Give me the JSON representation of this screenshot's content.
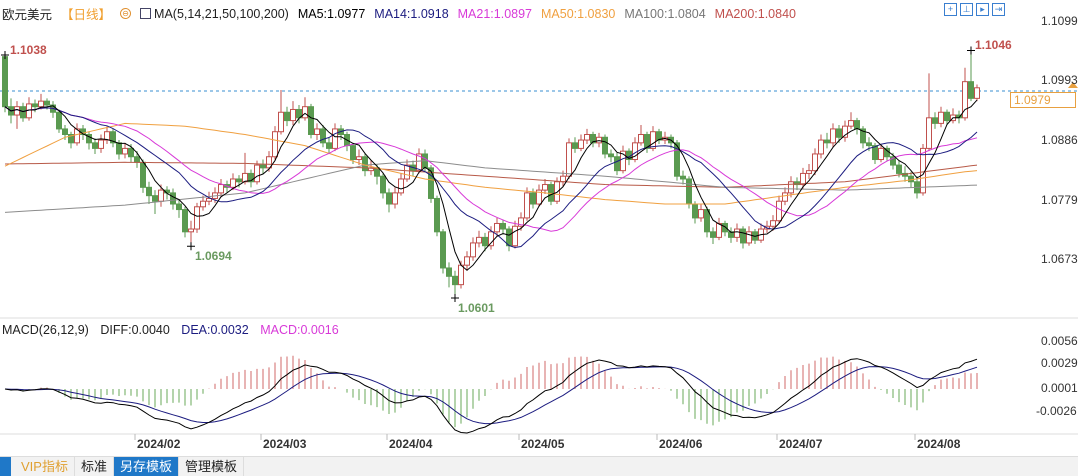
{
  "header": {
    "symbol": "欧元美元",
    "period": "【日线】",
    "indicator": "MA(5,14,21,50,100,200)",
    "ma5": "MA5:1.0977",
    "ma14": "MA14:1.0918",
    "ma21": "MA21:1.0897",
    "ma50": "MA50:1.0830",
    "ma100": "MA100:1.0804",
    "ma200": "MA200:1.0840",
    "tools": [
      "crosshair-icon",
      "range-icon",
      "step-icon",
      "end-icon"
    ]
  },
  "macd_legend": {
    "name": "MACD(26,12,9)",
    "diff": "DIFF:0.0040",
    "dea": "DEA:0.0032",
    "macd": "MACD:0.0016"
  },
  "tabs": [
    {
      "label": "VIP指标"
    },
    {
      "label": "标准"
    },
    {
      "label": "另存模板",
      "selected": true
    },
    {
      "label": "管理模板"
    }
  ],
  "colors": {
    "up": "#c0504d",
    "down": "#5a9a50",
    "ma5": "#000000",
    "ma14": "#1c1c80",
    "ma21": "#d83ad8",
    "ma50": "#f0a040",
    "ma100": "#8c8c8c",
    "ma200": "#b85a48",
    "last_price": "#e8a040",
    "dashed": "#3a8fd0"
  },
  "chart_data": [
    {
      "type": "candlestick",
      "title": "欧元美元 日线",
      "y_axis_ticks": [
        "1.1099",
        "1.0993",
        "1.0886",
        "1.0779",
        "1.0673"
      ],
      "last_price": "1.0979",
      "annotations": [
        {
          "text": "1.1038",
          "kind": "high",
          "index": 0,
          "value": 1.1038
        },
        {
          "text": "1.0694",
          "kind": "low",
          "index": 31,
          "value": 1.0694
        },
        {
          "text": "1.0601",
          "kind": "low",
          "index": 75,
          "value": 1.0601
        },
        {
          "text": "1.1046",
          "kind": "high",
          "index": 161,
          "value": 1.1046
        }
      ],
      "x_ticks": [
        {
          "label": "2024/02",
          "index": 22
        },
        {
          "label": "2024/03",
          "index": 43
        },
        {
          "label": "2024/04",
          "index": 64
        },
        {
          "label": "2024/05",
          "index": 86
        },
        {
          "label": "2024/06",
          "index": 109
        },
        {
          "label": "2024/07",
          "index": 129
        },
        {
          "label": "2024/08",
          "index": 152
        }
      ],
      "first_open": 1.1035,
      "close": [
        1.0945,
        1.093,
        1.0945,
        1.0925,
        1.095,
        1.0945,
        1.0955,
        1.0948,
        1.0935,
        1.0905,
        1.0895,
        1.088,
        1.0905,
        1.0895,
        1.088,
        1.087,
        1.0885,
        1.09,
        1.088,
        1.086,
        1.087,
        1.0855,
        1.0845,
        1.08,
        1.0785,
        1.0775,
        1.0795,
        1.079,
        1.077,
        1.076,
        1.072,
        1.0725,
        1.0765,
        1.0775,
        1.078,
        1.079,
        1.0805,
        1.08,
        1.0815,
        1.081,
        1.0825,
        1.081,
        1.084,
        1.0835,
        1.0855,
        1.09,
        1.0935,
        1.092,
        1.094,
        1.0925,
        1.0945,
        1.0895,
        1.0905,
        1.088,
        1.087,
        1.0905,
        1.0895,
        1.0875,
        1.085,
        1.0855,
        1.083,
        1.0835,
        1.082,
        1.079,
        1.077,
        1.079,
        1.0815,
        1.084,
        1.083,
        1.086,
        1.0835,
        1.078,
        1.072,
        1.0655,
        1.064,
        1.0625,
        1.066,
        1.0675,
        1.07,
        1.071,
        1.0695,
        1.072,
        1.0735,
        1.0725,
        1.0695,
        1.073,
        1.0745,
        1.079,
        1.077,
        1.0795,
        1.0805,
        1.0775,
        1.081,
        1.082,
        1.088,
        1.087,
        1.0885,
        1.0895,
        1.088,
        1.089,
        1.086,
        1.0855,
        1.083,
        1.0865,
        1.085,
        1.088,
        1.0895,
        1.087,
        1.09,
        1.0885,
        1.089,
        1.088,
        1.082,
        1.0815,
        1.077,
        1.0745,
        1.076,
        1.072,
        1.071,
        1.0735,
        1.072,
        1.071,
        1.0725,
        1.07,
        1.072,
        1.0705,
        1.0725,
        1.073,
        1.074,
        1.0775,
        1.079,
        1.081,
        1.0805,
        1.0825,
        1.083,
        1.086,
        1.0885,
        1.088,
        1.0905,
        1.089,
        1.091,
        1.092,
        1.0905,
        1.088,
        1.0875,
        1.085,
        1.087,
        1.0855,
        1.084,
        1.0825,
        1.082,
        1.081,
        1.079,
        1.087,
        1.0925,
        1.0915,
        1.0935,
        1.092,
        1.093,
        1.0925,
        1.099,
        1.096,
        1.0979
      ],
      "high": [
        1.1038,
        1.096,
        1.0955,
        1.0952,
        1.0962,
        1.0958,
        1.0968,
        1.096,
        1.0955,
        1.094,
        1.0912,
        1.09,
        1.0915,
        1.0912,
        1.09,
        1.0888,
        1.0895,
        1.091,
        1.0905,
        1.0885,
        1.088,
        1.0878,
        1.0865,
        1.085,
        1.081,
        1.0795,
        1.0805,
        1.0802,
        1.0798,
        1.0778,
        1.0765,
        1.074,
        1.0772,
        1.0785,
        1.0792,
        1.08,
        1.0815,
        1.0812,
        1.0825,
        1.0822,
        1.0862,
        1.0832,
        1.0848,
        1.085,
        1.0865,
        1.091,
        1.0975,
        1.0945,
        1.0955,
        1.0948,
        1.0962,
        1.095,
        1.0915,
        1.0912,
        1.089,
        1.0915,
        1.0912,
        1.09,
        1.088,
        1.0868,
        1.0862,
        1.0848,
        1.0842,
        1.0825,
        1.0798,
        1.08,
        1.0825,
        1.085,
        1.0848,
        1.087,
        1.0868,
        1.084,
        1.0785,
        1.0725,
        1.0665,
        1.065,
        1.0668,
        1.0685,
        1.071,
        1.0722,
        1.0718,
        1.073,
        1.0745,
        1.0742,
        1.073,
        1.074,
        1.0755,
        1.08,
        1.0798,
        1.0805,
        1.0815,
        1.081,
        1.0818,
        1.083,
        1.0888,
        1.089,
        1.0895,
        1.0905,
        1.09,
        1.0898,
        1.0895,
        1.0868,
        1.0862,
        1.0875,
        1.087,
        1.089,
        1.0912,
        1.09,
        1.091,
        1.0905,
        1.09,
        1.0895,
        1.0885,
        1.083,
        1.082,
        1.0775,
        1.077,
        1.0765,
        1.0728,
        1.0745,
        1.074,
        1.0728,
        1.0735,
        1.073,
        1.073,
        1.0725,
        1.0735,
        1.074,
        1.075,
        1.0785,
        1.08,
        1.082,
        1.0818,
        1.0835,
        1.0842,
        1.087,
        1.0895,
        1.0898,
        1.0915,
        1.0912,
        1.092,
        1.0935,
        1.0925,
        1.091,
        1.089,
        1.088,
        1.0878,
        1.0875,
        1.0862,
        1.0848,
        1.0838,
        1.0828,
        1.082,
        1.0878,
        1.1005,
        1.0935,
        1.0945,
        1.094,
        1.0942,
        1.0938,
        1.1015,
        1.1046,
        1.0985
      ],
      "low": [
        1.0935,
        1.0915,
        1.0905,
        1.0918,
        1.092,
        1.0935,
        1.094,
        1.094,
        1.0925,
        1.0898,
        1.0885,
        1.087,
        1.0875,
        1.0885,
        1.0868,
        1.086,
        1.0862,
        1.0878,
        1.0872,
        1.085,
        1.0852,
        1.0845,
        1.0835,
        1.079,
        1.077,
        1.0752,
        1.0765,
        1.0778,
        1.076,
        1.0745,
        1.071,
        1.0694,
        1.0718,
        1.0758,
        1.0768,
        1.0772,
        1.0782,
        1.079,
        1.0795,
        1.08,
        1.0805,
        1.08,
        1.0805,
        1.0825,
        1.0828,
        1.085,
        1.0895,
        1.091,
        1.0912,
        1.0915,
        1.092,
        1.0888,
        1.0885,
        1.0872,
        1.0862,
        1.0865,
        1.0885,
        1.0865,
        1.0842,
        1.084,
        1.082,
        1.0822,
        1.0805,
        1.078,
        1.0755,
        1.0762,
        1.0785,
        1.081,
        1.082,
        1.0825,
        1.0828,
        1.0772,
        1.0712,
        1.0645,
        1.062,
        1.0601,
        1.0618,
        1.065,
        1.0668,
        1.0692,
        1.0685,
        1.0688,
        1.0712,
        1.0715,
        1.0685,
        1.069,
        1.0722,
        1.074,
        1.0762,
        1.0765,
        1.0788,
        1.0768,
        1.077,
        1.0802,
        1.0815,
        1.0862,
        1.0865,
        1.0878,
        1.0872,
        1.0872,
        1.0852,
        1.0845,
        1.0822,
        1.0825,
        1.084,
        1.0845,
        1.0875,
        1.0862,
        1.0865,
        1.0878,
        1.0878,
        1.087,
        1.0812,
        1.0805,
        1.0762,
        1.0735,
        1.0738,
        1.071,
        1.0698,
        1.0705,
        1.0712,
        1.07,
        1.0702,
        1.069,
        1.0695,
        1.0698,
        1.07,
        1.0718,
        1.0722,
        1.0735,
        1.0768,
        1.0782,
        1.0795,
        1.0798,
        1.0815,
        1.0822,
        1.0852,
        1.087,
        1.0872,
        1.088,
        1.0882,
        1.0905,
        1.0895,
        1.087,
        1.0865,
        1.0842,
        1.0845,
        1.0848,
        1.0832,
        1.0818,
        1.081,
        1.08,
        1.078,
        1.0785,
        1.0865,
        1.0905,
        1.0908,
        1.0912,
        1.0915,
        1.0915,
        1.092,
        1.0955,
        1.0955
      ],
      "ma50_points": [
        [
          0,
          1.0838
        ],
        [
          10,
          1.089
        ],
        [
          20,
          1.0915
        ],
        [
          30,
          1.091
        ],
        [
          40,
          1.0895
        ],
        [
          50,
          1.0875
        ],
        [
          60,
          1.084
        ],
        [
          70,
          1.0815
        ],
        [
          80,
          1.08
        ],
        [
          90,
          1.079
        ],
        [
          100,
          1.0778
        ],
        [
          110,
          1.077
        ],
        [
          120,
          1.077
        ],
        [
          130,
          1.0785
        ],
        [
          140,
          1.08
        ],
        [
          150,
          1.0812
        ],
        [
          160,
          1.0828
        ],
        [
          162,
          1.083
        ]
      ],
      "ma100_points": [
        [
          0,
          1.0755
        ],
        [
          20,
          1.0768
        ],
        [
          40,
          1.079
        ],
        [
          60,
          1.084
        ],
        [
          70,
          1.0848
        ],
        [
          80,
          1.0835
        ],
        [
          100,
          1.082
        ],
        [
          120,
          1.08
        ],
        [
          140,
          1.0795
        ],
        [
          162,
          1.0804
        ]
      ],
      "ma200_points": [
        [
          0,
          1.0842
        ],
        [
          20,
          1.0845
        ],
        [
          40,
          1.0843
        ],
        [
          60,
          1.0835
        ],
        [
          80,
          1.082
        ],
        [
          100,
          1.0805
        ],
        [
          120,
          1.08
        ],
        [
          140,
          1.081
        ],
        [
          162,
          1.084
        ]
      ]
    },
    {
      "type": "macd",
      "params": [
        26,
        12,
        9
      ],
      "y_axis_ticks": [
        "0.0056",
        "0.0029",
        "0.0001",
        "-0.0026"
      ],
      "current": {
        "diff": 0.004,
        "dea": 0.0032,
        "macd": 0.0016
      }
    }
  ]
}
